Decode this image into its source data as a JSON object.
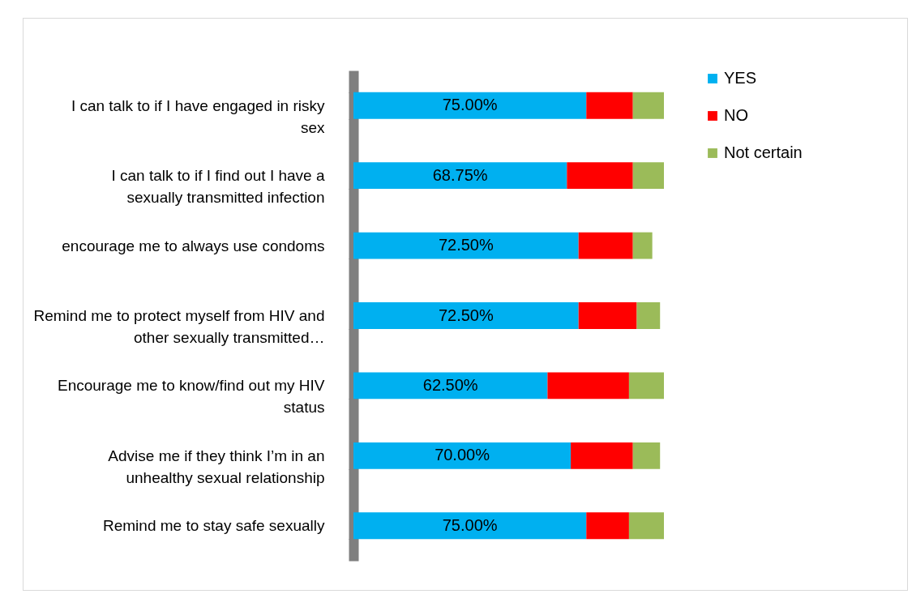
{
  "chart_data": {
    "type": "bar",
    "orientation": "horizontal",
    "stacked": true,
    "legend": "right",
    "grid": false,
    "categories": [
      "I can talk to if I have engaged in risky sex",
      "I can talk to if I find out I have a sexually transmitted infection",
      "encourage me to always use condoms",
      "Remind me to protect myself from HIV and other sexually transmitted…",
      "Encourage me to know/find out my HIV status",
      "Advise me if they think I’m in an unhealthy sexual relationship",
      "Remind me to stay safe sexually"
    ],
    "series": [
      {
        "name": "YES",
        "color": "#00b0f0",
        "values": [
          75,
          68.75,
          72.5,
          72.5,
          62.5,
          70,
          75
        ],
        "value_labels": [
          "75.00%",
          "68.75%",
          "72.50%",
          "72.50%",
          "62.50%",
          "70.00%",
          "75.00%"
        ]
      },
      {
        "name": "NO",
        "color": "#ff0000",
        "values": [
          15,
          21.25,
          17.5,
          18.75,
          26.25,
          20,
          13.75
        ]
      },
      {
        "name": "Not certain",
        "color": "#9bbb59",
        "values": [
          10,
          10,
          6.25,
          7.5,
          11.25,
          8.75,
          11.25
        ]
      }
    ]
  }
}
